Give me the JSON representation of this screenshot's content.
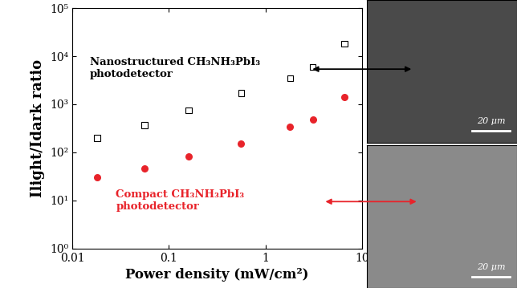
{
  "chart_data": {
    "type": "scatter",
    "xlabel": "Power density (mW/cm²)",
    "ylabel": "Ilight/Idark ratio",
    "x": [
      0.018,
      0.056,
      0.16,
      0.56,
      1.8,
      3.1,
      6.6
    ],
    "series": [
      {
        "name": "Nanostructured",
        "color": "#000000",
        "marker": "square",
        "values": [
          200,
          370,
          750,
          1700,
          3500,
          5900,
          18000
        ]
      },
      {
        "name": "Compact",
        "color": "#e8232a",
        "marker": "circle",
        "values": [
          30,
          47,
          82,
          155,
          340,
          490,
          1420
        ]
      }
    ],
    "log": true,
    "xlim": [
      0.01,
      10
    ],
    "xticks": [
      0.01,
      0.1,
      1,
      10
    ],
    "ylim": [
      1,
      100000
    ],
    "yticks": [
      {
        "value": 1,
        "label": "10⁰"
      },
      {
        "value": 10,
        "label": "10¹"
      },
      {
        "value": 100,
        "label": "10²"
      },
      {
        "value": 1000,
        "label": "10³"
      },
      {
        "value": 10000,
        "label": "10⁴"
      },
      {
        "value": 100000,
        "label": "10⁵"
      }
    ],
    "annotations": [
      {
        "text": "Nanostructured CH₃NH₃PbI₃\nphotodetector",
        "color": "#000000"
      },
      {
        "text": "Compact CH₃NH₃PbI₃\nphotodetector",
        "color": "#e8232a"
      }
    ],
    "images": [
      {
        "scale_label": "20 μm"
      },
      {
        "scale_label": "20 μm"
      }
    ]
  }
}
